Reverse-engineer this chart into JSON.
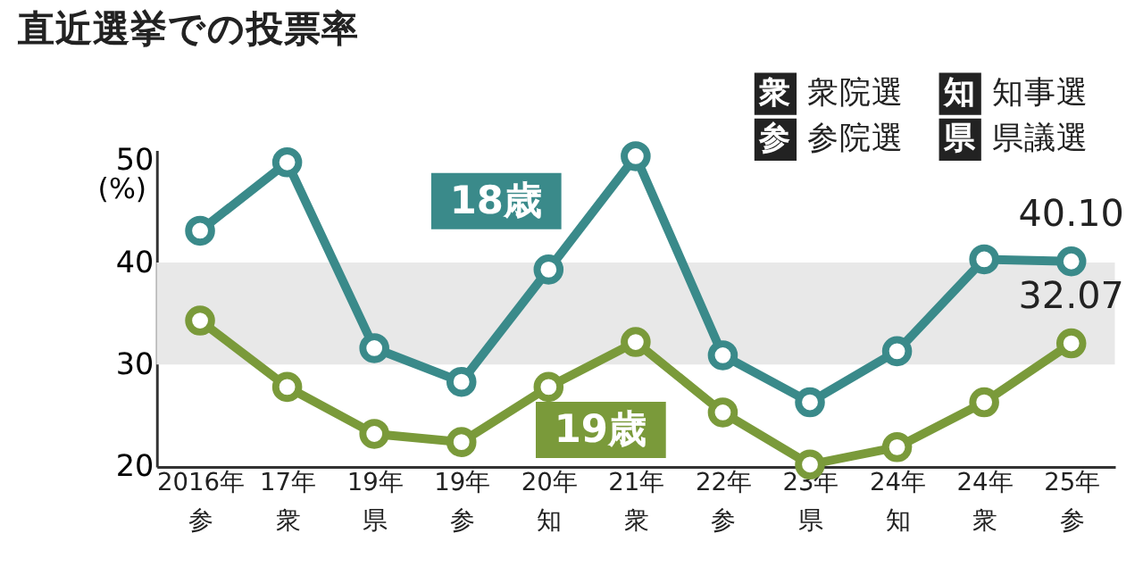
{
  "chart_data": {
    "type": "line",
    "title": "直近選挙での投票率",
    "ylabel": "(%)",
    "categories": [
      "2016年参",
      "17年衆",
      "19年県",
      "19年参",
      "20年知",
      "21年衆",
      "22年参",
      "23年県",
      "24年知",
      "24年衆",
      "25年参"
    ],
    "series": [
      {
        "name": "18歳",
        "color": "#3a8a8a",
        "values": [
          43.1,
          49.8,
          31.6,
          28.3,
          39.3,
          50.4,
          30.9,
          26.3,
          31.3,
          40.3,
          40.1
        ],
        "value_labels": [
          null,
          null,
          null,
          null,
          null,
          null,
          null,
          null,
          null,
          null,
          "40.10"
        ]
      },
      {
        "name": "19歳",
        "color": "#7a9a3a",
        "values": [
          34.3,
          27.8,
          23.2,
          22.4,
          27.8,
          32.2,
          25.3,
          20.2,
          21.9,
          26.3,
          32.07
        ],
        "value_labels": [
          null,
          null,
          null,
          null,
          null,
          null,
          null,
          null,
          null,
          null,
          "32.07"
        ]
      }
    ],
    "annotations": [
      "衆 衆院選",
      "知 知事選",
      "参 参院選",
      "県 県議選"
    ],
    "bands": [
      {
        "axis": "y",
        "from": 30,
        "to": 40,
        "color": "#e8e8e8"
      }
    ],
    "ylim": [
      20,
      51
    ],
    "yticks": [
      20,
      30,
      40,
      50
    ],
    "grid": false,
    "marker": "circle",
    "line_style": "solid",
    "legend": false
  }
}
